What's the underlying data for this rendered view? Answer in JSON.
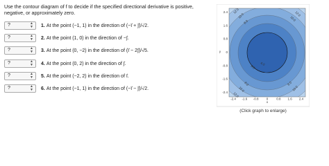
{
  "instructions": "Use the contour diagram of f to decide if the specified directional derivative is positive, negative, or approximately zero.",
  "questions": [
    {
      "choice": "?",
      "number": "1.",
      "text": "At the point (−1, 1) in the direction of (−i⃗ + j⃗)/√2."
    },
    {
      "choice": "?",
      "number": "2.",
      "text": "At the point (1, 0) in the direction of −j⃗."
    },
    {
      "choice": "?",
      "number": "3.",
      "text": "At the point (0, −2) in the direction of (i⃗ − 2j⃗)/√5."
    },
    {
      "choice": "?",
      "number": "4.",
      "text": "At the point (0, 2) in the direction of j⃗."
    },
    {
      "choice": "?",
      "number": "5.",
      "text": "At the point (−2, 2) in the direction of i⃗."
    },
    {
      "choice": "?",
      "number": "6.",
      "text": "At the point (−1, 1) in the direction of (−i⃗ − j⃗)/√2."
    }
  ],
  "plot": {
    "xlabel": "x",
    "ylabel": "y",
    "xticks": [
      "-2.4",
      "-1.6",
      "-0.8",
      "0",
      "0.8",
      "1.6",
      "2.4"
    ],
    "yticks": [
      "2.4",
      "1.6",
      "0.8",
      "0",
      "-0.8",
      "-1.6",
      "-2.4"
    ],
    "contour_labels": [
      "12.0",
      "10.0",
      "8.0",
      "12.0",
      "10.0",
      "6.0",
      "4.0",
      "8.0",
      "10.0",
      "12.0",
      "8.0",
      "10.0"
    ],
    "caption": "(Click graph to enlarge)"
  }
}
